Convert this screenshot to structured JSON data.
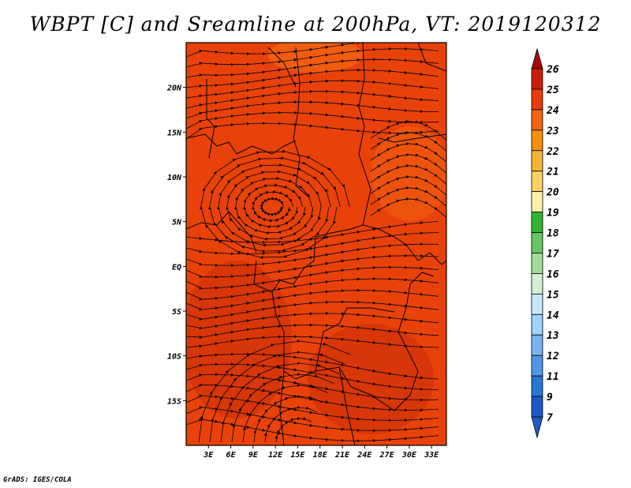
{
  "title": "WBPT [C] and Sreamline at 200hPa, VT: 2019120312",
  "credit": "GrADS: IGES/COLA",
  "map": {
    "field": "WBPT",
    "level": "200hPa",
    "valid_time": "2019120312",
    "lon_range": [
      0,
      35
    ],
    "lat_range": [
      -20,
      25
    ],
    "lon_ticks": [
      {
        "lon": 3,
        "label": "3E"
      },
      {
        "lon": 6,
        "label": "6E"
      },
      {
        "lon": 9,
        "label": "9E"
      },
      {
        "lon": 12,
        "label": "12E"
      },
      {
        "lon": 15,
        "label": "15E"
      },
      {
        "lon": 18,
        "label": "18E"
      },
      {
        "lon": 21,
        "label": "21E"
      },
      {
        "lon": 24,
        "label": "24E"
      },
      {
        "lon": 27,
        "label": "27E"
      },
      {
        "lon": 30,
        "label": "30E"
      },
      {
        "lon": 33,
        "label": "33E"
      }
    ],
    "lat_ticks": [
      {
        "lat": 20,
        "label": "20N"
      },
      {
        "lat": 15,
        "label": "15N"
      },
      {
        "lat": 10,
        "label": "10N"
      },
      {
        "lat": 5,
        "label": "5N"
      },
      {
        "lat": 0,
        "label": "EQ"
      },
      {
        "lat": -5,
        "label": "5S"
      },
      {
        "lat": -10,
        "label": "10S"
      },
      {
        "lat": -15,
        "label": "15S"
      }
    ],
    "colors": {
      "background": "#e8420a",
      "darker": "#cc2e06",
      "lighter": "#f2640f",
      "border": "#000000",
      "streamline": "#000000"
    }
  },
  "colorbar": {
    "labels": [
      "26",
      "25",
      "24",
      "23",
      "22",
      "21",
      "20",
      "19",
      "18",
      "17",
      "16",
      "15",
      "14",
      "13",
      "12",
      "11",
      "9",
      "7"
    ],
    "colors": [
      "#a50a0a",
      "#c81e0a",
      "#e63c0a",
      "#f0640f",
      "#f5900a",
      "#f5b432",
      "#fad264",
      "#faf0aa",
      "#32b432",
      "#64c864",
      "#a0dc96",
      "#d2f0d2",
      "#c8e6fa",
      "#a0d2fa",
      "#78b4f0",
      "#5096e6",
      "#2878d2",
      "#1e5ac8"
    ],
    "cap_top_color": "#a50a0a",
    "cap_bottom_color": "#1e5ac8"
  }
}
